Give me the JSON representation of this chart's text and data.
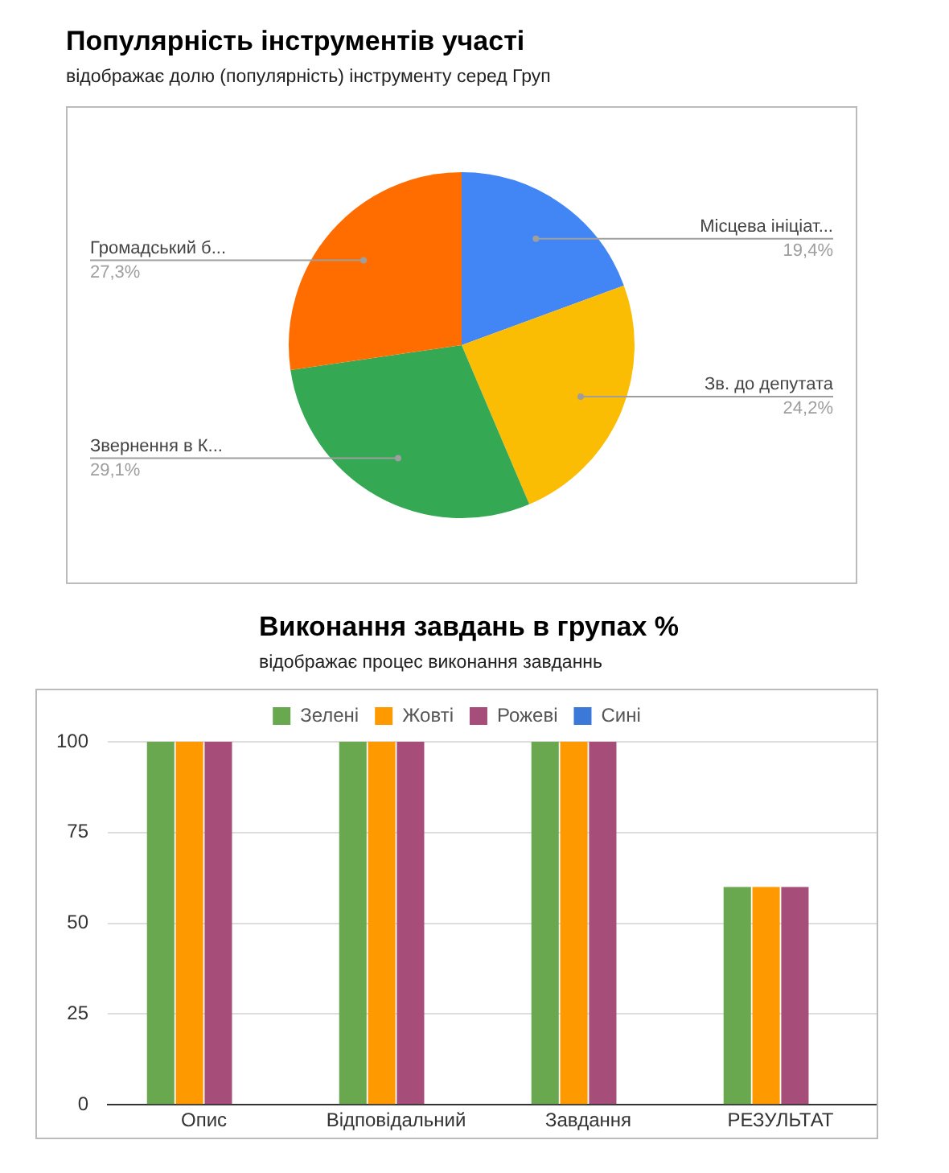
{
  "chart_data": [
    {
      "type": "pie",
      "title": "Популярність інструментів участі",
      "subtitle": "відображає долю (популярність) інструменту серед Груп",
      "categories": [
        "Місцева ініціат...",
        "Зв. до депутата",
        "Звернення в К...",
        "Громадський б..."
      ],
      "values": [
        19.4,
        24.2,
        29.1,
        27.3
      ],
      "colors": [
        "#4285f4",
        "#fbbc04",
        "#34a853",
        "#ff6d01"
      ],
      "value_labels": [
        "19,4%",
        "24,2%",
        "29,1%",
        "27,3%"
      ]
    },
    {
      "type": "bar",
      "title": "Виконання завдань в групах %",
      "subtitle": "відображає процес виконання завданнь",
      "categories": [
        "Опис",
        "Відповідальний",
        "Завдання",
        "РЕЗУЛЬТАТ"
      ],
      "series": [
        {
          "name": "Зелені",
          "color": "#6aa84f",
          "values": [
            100,
            100,
            100,
            60
          ]
        },
        {
          "name": "Жовті",
          "color": "#ff9900",
          "values": [
            100,
            100,
            100,
            60
          ]
        },
        {
          "name": "Рожеві",
          "color": "#a64d79",
          "values": [
            100,
            100,
            100,
            60
          ]
        },
        {
          "name": "Сині",
          "color": "#3c78d8",
          "values": [
            null,
            null,
            null,
            null
          ]
        }
      ],
      "ylim": [
        0,
        100
      ],
      "yticks": [
        0,
        25,
        50,
        75,
        100
      ],
      "grid": "y",
      "legend": "top"
    }
  ]
}
